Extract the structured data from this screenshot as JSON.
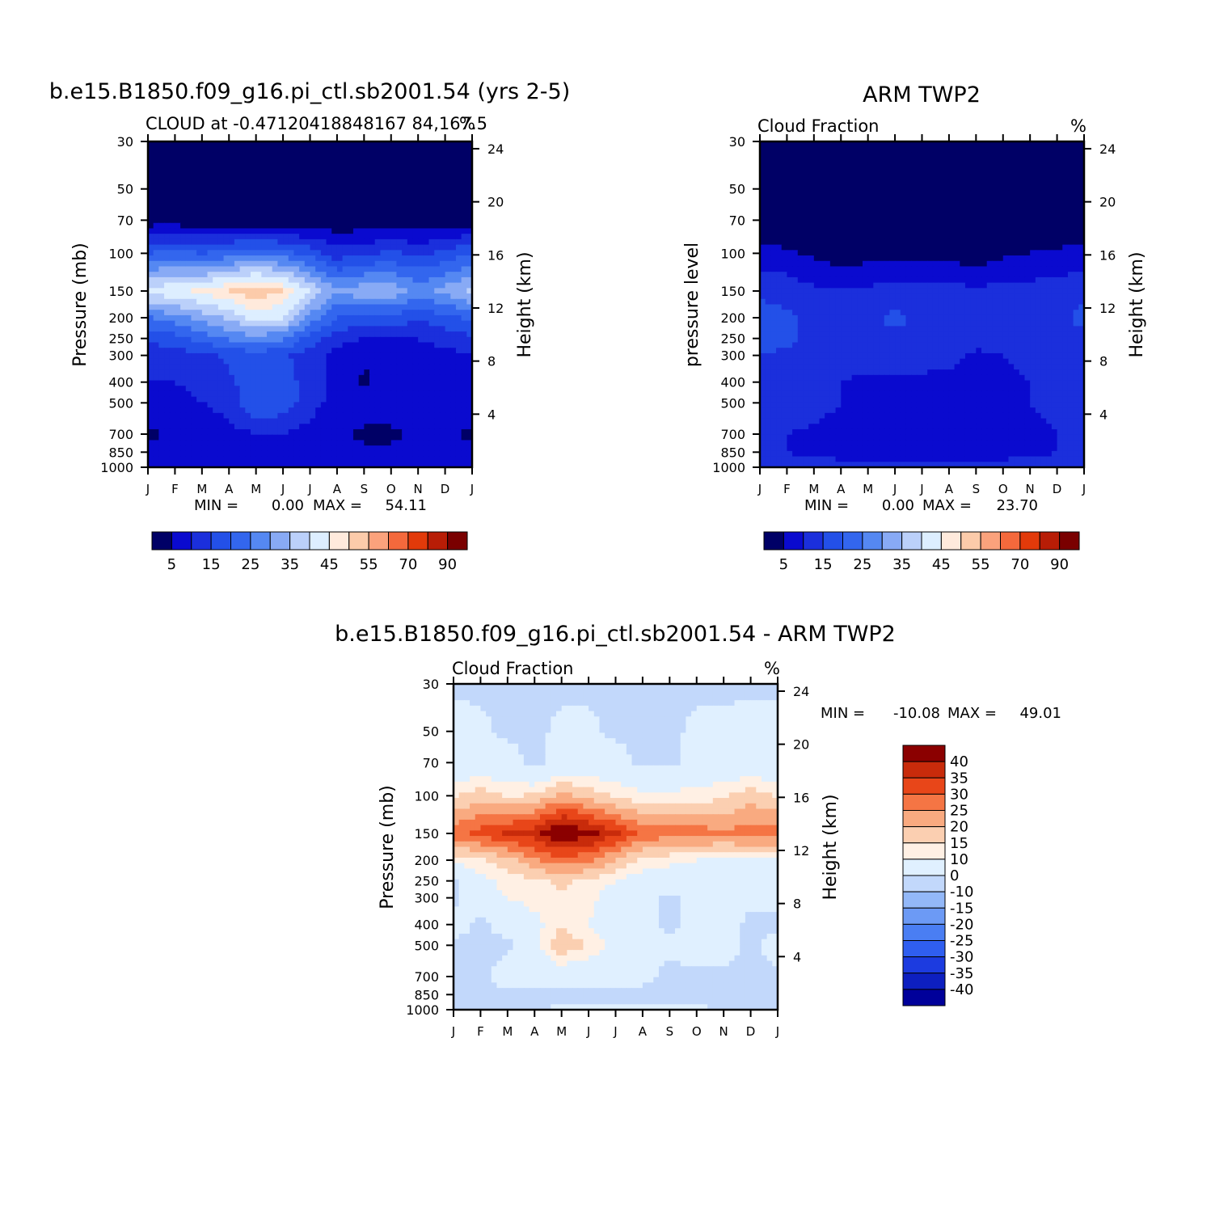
{
  "chart_data": [
    {
      "type": "heatmap",
      "title": "b.e15.B1850.f09_g16.pi_ctl.sb2001.54 (yrs 2-5)",
      "subtitle": "CLOUD at -0.47120418848167 84,167.5",
      "units": "%",
      "xlabel": "",
      "ylabel": "Pressure (mb)",
      "ylabel_right": "Height (km)",
      "x_ticks": [
        "J",
        "F",
        "M",
        "A",
        "M",
        "J",
        "J",
        "A",
        "S",
        "O",
        "N",
        "D",
        "J"
      ],
      "y_ticks": [
        "30",
        "50",
        "70",
        "100",
        "150",
        "200",
        "250",
        "300",
        "400",
        "500",
        "700",
        "850",
        "1000"
      ],
      "y_ticks_right": [
        "24",
        "20",
        "16",
        "12",
        "8",
        "4"
      ],
      "min_label": "MIN =",
      "min_value": "0.00",
      "max_label": "MAX =",
      "max_value": "54.11",
      "colorbar_labels": [
        "5",
        "15",
        "25",
        "35",
        "45",
        "55",
        "70",
        "90"
      ],
      "colorbar_levels": [
        5,
        10,
        15,
        20,
        25,
        30,
        35,
        40,
        45,
        50,
        55,
        60,
        70,
        80,
        90
      ],
      "grid_months": [
        "J",
        "F",
        "M",
        "A",
        "M",
        "J",
        "J",
        "A",
        "S",
        "O",
        "N",
        "D",
        "J"
      ],
      "grid_pressure": [
        30,
        50,
        70,
        100,
        150,
        200,
        250,
        300,
        400,
        500,
        700,
        850,
        1000
      ],
      "values": [
        [
          0,
          0,
          0,
          0,
          0,
          0,
          0,
          0,
          0,
          0,
          0,
          0,
          0
        ],
        [
          0,
          0,
          0,
          0,
          0,
          0,
          0,
          0,
          0,
          0,
          0,
          0,
          0
        ],
        [
          2,
          2,
          1,
          1,
          1,
          1,
          1,
          1,
          1,
          1,
          1,
          1,
          2
        ],
        [
          20,
          22,
          20,
          22,
          24,
          22,
          18,
          12,
          14,
          16,
          14,
          16,
          20
        ],
        [
          42,
          44,
          46,
          50,
          54,
          50,
          40,
          30,
          34,
          34,
          28,
          32,
          36
        ],
        [
          24,
          28,
          32,
          36,
          42,
          40,
          28,
          20,
          18,
          18,
          16,
          18,
          22
        ],
        [
          16,
          18,
          22,
          26,
          28,
          26,
          18,
          12,
          10,
          10,
          10,
          12,
          14
        ],
        [
          12,
          12,
          14,
          16,
          18,
          16,
          12,
          8,
          6,
          6,
          8,
          8,
          10
        ],
        [
          10,
          10,
          12,
          14,
          18,
          18,
          12,
          8,
          4,
          8,
          8,
          8,
          8
        ],
        [
          8,
          8,
          10,
          12,
          20,
          18,
          12,
          8,
          8,
          8,
          8,
          8,
          8
        ],
        [
          4,
          6,
          6,
          8,
          10,
          10,
          8,
          6,
          4,
          4,
          6,
          6,
          4
        ],
        [
          6,
          6,
          6,
          8,
          8,
          8,
          8,
          6,
          6,
          6,
          6,
          6,
          6
        ],
        [
          10,
          10,
          10,
          10,
          10,
          10,
          10,
          10,
          10,
          10,
          10,
          10,
          10
        ]
      ]
    },
    {
      "type": "heatmap",
      "title": "ARM TWP2",
      "subtitle": "Cloud Fraction",
      "units": "%",
      "xlabel": "",
      "ylabel": "pressure level",
      "ylabel_right": "Height (km)",
      "x_ticks": [
        "J",
        "F",
        "M",
        "A",
        "M",
        "J",
        "J",
        "A",
        "S",
        "O",
        "N",
        "D",
        "J"
      ],
      "y_ticks": [
        "30",
        "50",
        "70",
        "100",
        "150",
        "200",
        "250",
        "300",
        "400",
        "500",
        "700",
        "850",
        "1000"
      ],
      "y_ticks_right": [
        "24",
        "20",
        "16",
        "12",
        "8",
        "4"
      ],
      "min_label": "MIN =",
      "min_value": "0.00",
      "max_label": "MAX =",
      "max_value": "23.70",
      "colorbar_labels": [
        "5",
        "15",
        "25",
        "35",
        "45",
        "55",
        "70",
        "90"
      ],
      "colorbar_levels": [
        5,
        10,
        15,
        20,
        25,
        30,
        35,
        40,
        45,
        50,
        55,
        60,
        70,
        80,
        90
      ],
      "grid_months": [
        "J",
        "F",
        "M",
        "A",
        "M",
        "J",
        "J",
        "A",
        "S",
        "O",
        "N",
        "D",
        "J"
      ],
      "grid_pressure": [
        30,
        50,
        70,
        100,
        150,
        200,
        250,
        300,
        400,
        500,
        700,
        850,
        1000
      ],
      "values": [
        [
          0,
          0,
          0,
          0,
          0,
          0,
          0,
          0,
          0,
          0,
          0,
          0,
          0
        ],
        [
          0,
          0,
          0,
          0,
          0,
          0,
          0,
          0,
          0,
          0,
          0,
          0,
          0
        ],
        [
          0,
          0,
          0,
          0,
          0,
          0,
          0,
          0,
          0,
          0,
          0,
          0,
          0
        ],
        [
          7,
          6,
          4,
          2,
          3,
          3,
          4,
          3,
          2,
          4,
          5,
          6,
          7
        ],
        [
          14,
          13,
          11,
          11,
          11,
          12,
          12,
          12,
          11,
          12,
          12,
          12,
          14
        ],
        [
          17,
          16,
          13,
          13,
          14,
          16,
          14,
          14,
          12,
          12,
          14,
          14,
          16
        ],
        [
          17,
          16,
          14,
          13,
          14,
          14,
          14,
          14,
          12,
          12,
          14,
          14,
          14
        ],
        [
          15,
          14,
          13,
          12,
          12,
          12,
          12,
          12,
          9,
          10,
          12,
          12,
          12
        ],
        [
          14,
          14,
          13,
          10,
          9,
          9,
          9,
          8,
          6,
          8,
          10,
          12,
          12
        ],
        [
          14,
          14,
          12,
          10,
          9,
          9,
          9,
          8,
          5,
          7,
          10,
          11,
          11
        ],
        [
          10,
          10,
          9,
          8,
          5,
          8,
          5,
          8,
          5,
          6,
          9,
          10,
          10
        ],
        [
          10,
          10,
          9,
          8,
          8,
          8,
          8,
          8,
          8,
          8,
          9,
          10,
          10
        ],
        [
          12,
          12,
          12,
          12,
          12,
          12,
          12,
          12,
          12,
          12,
          12,
          12,
          12
        ]
      ]
    },
    {
      "type": "heatmap",
      "title": "b.e15.B1850.f09_g16.pi_ctl.sb2001.54 - ARM TWP2",
      "subtitle": "Cloud Fraction",
      "units": "%",
      "xlabel": "",
      "ylabel": "Pressure (mb)",
      "ylabel_right": "Height (km)",
      "x_ticks": [
        "J",
        "F",
        "M",
        "A",
        "M",
        "J",
        "J",
        "A",
        "S",
        "O",
        "N",
        "D",
        "J"
      ],
      "y_ticks": [
        "30",
        "50",
        "70",
        "100",
        "150",
        "200",
        "250",
        "300",
        "400",
        "500",
        "700",
        "850",
        "1000"
      ],
      "y_ticks_right": [
        "24",
        "20",
        "16",
        "12",
        "8",
        "4"
      ],
      "min_label": "MIN =",
      "min_value": "-10.08",
      "max_label": "MAX =",
      "max_value": "49.01",
      "colorbar_labels": [
        "40",
        "35",
        "30",
        "25",
        "20",
        "15",
        "10",
        "0",
        "-10",
        "-15",
        "-20",
        "-25",
        "-30",
        "-35",
        "-40"
      ],
      "colorbar_levels": [
        -40,
        -35,
        -30,
        -25,
        -20,
        -15,
        -10,
        0,
        10,
        15,
        20,
        25,
        30,
        35,
        40
      ],
      "grid_months": [
        "J",
        "F",
        "M",
        "A",
        "M",
        "J",
        "J",
        "A",
        "S",
        "O",
        "N",
        "D",
        "J"
      ],
      "grid_pressure": [
        30,
        50,
        70,
        100,
        150,
        200,
        250,
        300,
        400,
        500,
        700,
        850,
        1000
      ],
      "values": [
        [
          -2,
          -2,
          -2,
          -2,
          -2,
          -2,
          -2,
          -2,
          -2,
          -2,
          -2,
          -2,
          -2
        ],
        [
          4,
          2,
          -2,
          -2,
          2,
          2,
          -2,
          -2,
          -2,
          2,
          2,
          4,
          4
        ],
        [
          4,
          4,
          4,
          -2,
          4,
          4,
          4,
          -2,
          -2,
          4,
          4,
          4,
          4
        ],
        [
          14,
          18,
          14,
          16,
          22,
          18,
          14,
          12,
          12,
          12,
          14,
          18,
          14
        ],
        [
          28,
          32,
          36,
          38,
          46,
          42,
          36,
          28,
          28,
          28,
          26,
          28,
          28
        ],
        [
          12,
          14,
          18,
          24,
          28,
          26,
          20,
          14,
          12,
          10,
          10,
          10,
          10
        ],
        [
          -2,
          8,
          12,
          14,
          16,
          14,
          10,
          6,
          4,
          4,
          4,
          4,
          4
        ],
        [
          -2,
          6,
          10,
          12,
          14,
          12,
          6,
          2,
          -2,
          2,
          4,
          2,
          2
        ],
        [
          4,
          -2,
          4,
          8,
          14,
          10,
          6,
          2,
          -2,
          2,
          4,
          -2,
          -2
        ],
        [
          -2,
          -2,
          -2,
          8,
          20,
          14,
          8,
          2,
          2,
          4,
          4,
          -2,
          4
        ],
        [
          -2,
          -2,
          4,
          4,
          4,
          4,
          4,
          2,
          -2,
          -2,
          -2,
          -2,
          -2
        ],
        [
          -2,
          -2,
          -2,
          -2,
          -2,
          -2,
          -2,
          -2,
          -2,
          -2,
          -2,
          -2,
          -2
        ],
        [
          -2,
          -2,
          -2,
          -2,
          2,
          2,
          2,
          2,
          2,
          2,
          -2,
          -2,
          -2
        ]
      ]
    }
  ],
  "colors": {
    "seq_scale": [
      "#000066",
      "#0a0acf",
      "#1b2fdc",
      "#2350e8",
      "#3366ee",
      "#5588f2",
      "#88aaf5",
      "#bbd0fa",
      "#ddeeff",
      "#ffeadc",
      "#fccbaa",
      "#fba27c",
      "#f4693c",
      "#e23a0a",
      "#b81d06",
      "#7a0000"
    ],
    "div_scale": [
      "#00009a",
      "#0d1fc0",
      "#1c3be0",
      "#2f5ef0",
      "#4a7ef3",
      "#6c9af5",
      "#93b8f8",
      "#c2d8fb",
      "#e0f0ff",
      "#fff0e4",
      "#fbcfb1",
      "#f9aa80",
      "#f57544",
      "#e84619",
      "#c82b0b",
      "#8b0000"
    ]
  }
}
